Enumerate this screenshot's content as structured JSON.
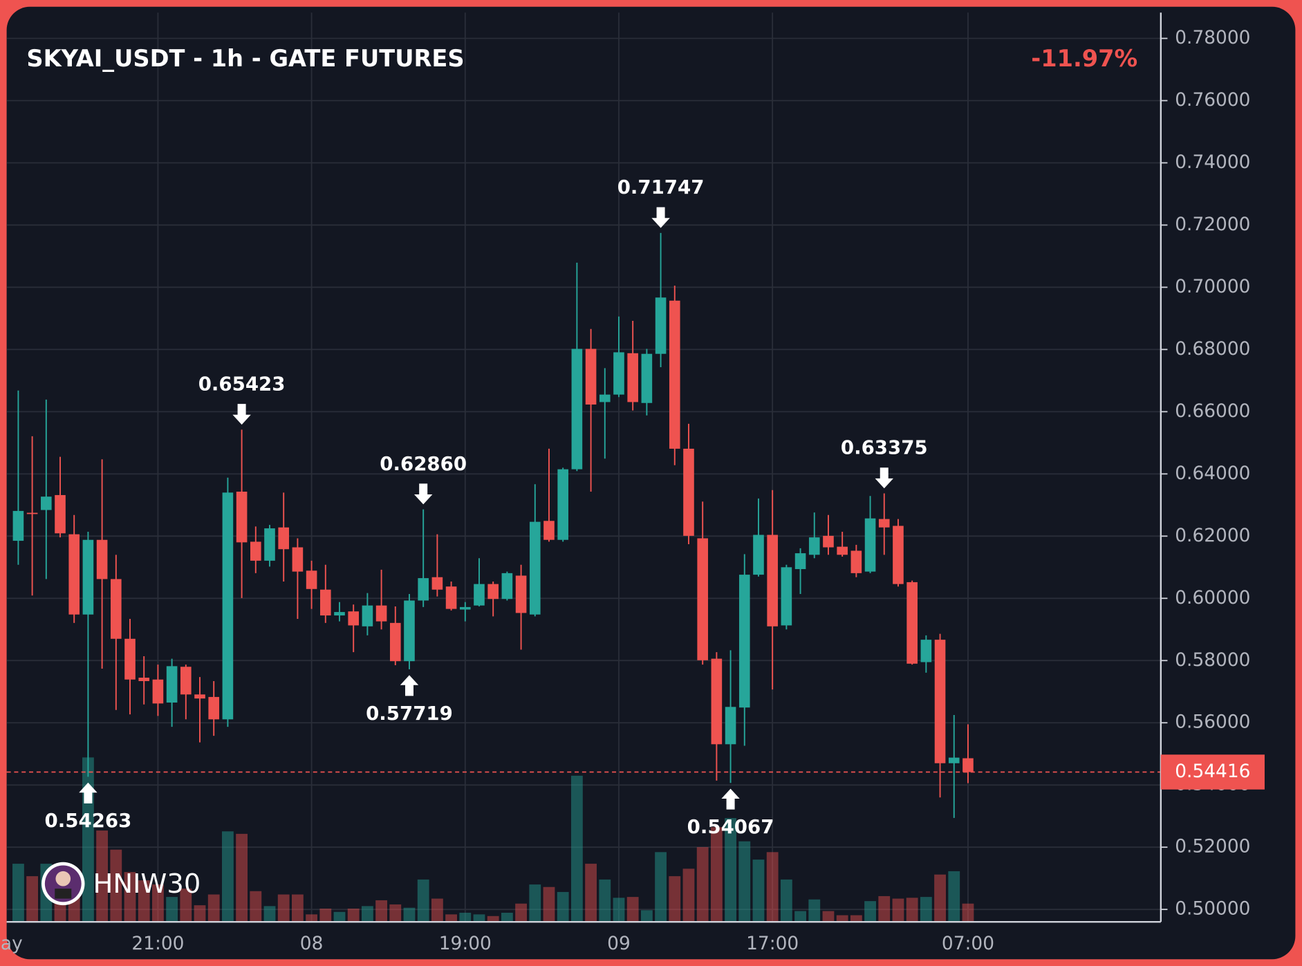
{
  "chart_data": {
    "type": "candlestick",
    "title": "SKYAI_USDT - 1h - GATE FUTURES",
    "change_label": "-11.97%",
    "watermark": "HNIW30",
    "up_color": "#26a69a",
    "down_color": "#ef5350",
    "grid": true,
    "ylim": [
      0.496,
      0.7883
    ],
    "yticks": [
      {
        "value": 0.5,
        "label": "0.50000"
      },
      {
        "value": 0.52,
        "label": "0.52000"
      },
      {
        "value": 0.54,
        "label": "0.54000"
      },
      {
        "value": 0.56,
        "label": "0.56000"
      },
      {
        "value": 0.58,
        "label": "0.58000"
      },
      {
        "value": 0.6,
        "label": "0.60000"
      },
      {
        "value": 0.62,
        "label": "0.62000"
      },
      {
        "value": 0.64,
        "label": "0.64000"
      },
      {
        "value": 0.66,
        "label": "0.66000"
      },
      {
        "value": 0.68,
        "label": "0.68000"
      },
      {
        "value": 0.7,
        "label": "0.70000"
      },
      {
        "value": 0.72,
        "label": "0.72000"
      },
      {
        "value": 0.74,
        "label": "0.74000"
      },
      {
        "value": 0.76,
        "label": "0.76000"
      },
      {
        "value": 0.78,
        "label": "0.78000"
      }
    ],
    "categories": [
      "ay",
      null,
      null,
      null,
      null,
      null,
      null,
      null,
      null,
      null,
      "21:00",
      null,
      null,
      null,
      null,
      null,
      null,
      null,
      null,
      null,
      null,
      "08",
      null,
      null,
      null,
      null,
      null,
      null,
      null,
      null,
      null,
      null,
      "19:00",
      null,
      null,
      null,
      null,
      null,
      null,
      null,
      null,
      null,
      null,
      "09",
      null,
      null,
      null,
      null,
      null,
      null,
      null,
      null,
      null,
      null,
      "17:00",
      null,
      null,
      null,
      null,
      null,
      null,
      null,
      null,
      null,
      null,
      null,
      null,
      null,
      "07:00"
    ],
    "open": [
      0.6185,
      0.6275,
      0.6284,
      0.6332,
      0.6206,
      0.5948,
      0.6188,
      0.6062,
      0.587,
      0.5745,
      0.5739,
      0.5665,
      0.578,
      0.5691,
      0.5683,
      0.5611,
      0.6343,
      0.6182,
      0.6121,
      0.6228,
      0.6164,
      0.6089,
      0.6028,
      0.5945,
      0.5958,
      0.591,
      0.5977,
      0.5921,
      0.5798,
      0.5993,
      0.6068,
      0.6038,
      0.5964,
      0.5977,
      0.6046,
      0.5998,
      0.6073,
      0.5948,
      0.6249,
      0.6188,
      0.6415,
      0.6802,
      0.6631,
      0.6655,
      0.6788,
      0.6628,
      0.6786,
      0.6957,
      0.6481,
      0.6193,
      0.5806,
      0.5531,
      0.5649,
      0.6076,
      0.6204,
      0.5913,
      0.6094,
      0.614,
      0.6201,
      0.6166,
      0.6153,
      0.6086,
      0.6255,
      0.6233,
      0.6052,
      0.5795,
      0.5867,
      0.547,
      0.5486
    ],
    "high": [
      0.6668,
      0.6521,
      0.6639,
      0.6455,
      0.6268,
      0.6214,
      0.6447,
      0.614,
      0.5934,
      0.5814,
      0.5787,
      0.5806,
      0.5787,
      0.5747,
      0.5734,
      0.6388,
      0.65423,
      0.6231,
      0.6236,
      0.634,
      0.6193,
      0.6121,
      0.6108,
      0.5988,
      0.598,
      0.6017,
      0.6092,
      0.5974,
      0.6014,
      0.6286,
      0.6206,
      0.6054,
      0.5988,
      0.6129,
      0.6054,
      0.6086,
      0.6108,
      0.6367,
      0.6481,
      0.642,
      0.7079,
      0.6866,
      0.674,
      0.6906,
      0.6892,
      0.6802,
      0.71747,
      0.7005,
      0.6561,
      0.6311,
      0.5827,
      0.5833,
      0.6142,
      0.6321,
      0.6348,
      0.6108,
      0.6161,
      0.6276,
      0.6268,
      0.6214,
      0.6172,
      0.6329,
      0.63375,
      0.6255,
      0.6057,
      0.5881,
      0.5886,
      0.5625,
      0.5595
    ],
    "low": [
      0.6108,
      0.6009,
      0.6062,
      0.6196,
      0.5921,
      0.54263,
      0.5774,
      0.5641,
      0.5627,
      0.5659,
      0.5622,
      0.5587,
      0.5611,
      0.5537,
      0.5558,
      0.5587,
      0.6001,
      0.6081,
      0.6102,
      0.6054,
      0.5934,
      0.5966,
      0.5921,
      0.5926,
      0.5827,
      0.5881,
      0.59,
      0.5785,
      0.57719,
      0.5972,
      0.6006,
      0.5961,
      0.5926,
      0.5974,
      0.5942,
      0.5993,
      0.5835,
      0.5942,
      0.6182,
      0.6182,
      0.6409,
      0.6343,
      0.6449,
      0.6647,
      0.6604,
      0.6588,
      0.6743,
      0.6428,
      0.6174,
      0.5787,
      0.5414,
      0.54067,
      0.5526,
      0.607,
      0.5707,
      0.59,
      0.6014,
      0.6129,
      0.614,
      0.6134,
      0.6068,
      0.6081,
      0.614,
      0.6038,
      0.5787,
      0.5761,
      0.536,
      0.5294,
      0.5406
    ],
    "close": [
      0.6281,
      0.6272,
      0.6327,
      0.6209,
      0.5948,
      0.6188,
      0.6062,
      0.587,
      0.5739,
      0.5734,
      0.5662,
      0.5782,
      0.5691,
      0.5678,
      0.5611,
      0.634,
      0.618,
      0.6121,
      0.6225,
      0.6158,
      0.6086,
      0.603,
      0.5945,
      0.5956,
      0.5913,
      0.5977,
      0.5926,
      0.5798,
      0.5993,
      0.6065,
      0.6028,
      0.5966,
      0.5972,
      0.6046,
      0.5998,
      0.6081,
      0.5953,
      0.6246,
      0.6188,
      0.6415,
      0.6802,
      0.6623,
      0.6655,
      0.6791,
      0.6631,
      0.6786,
      0.6967,
      0.6481,
      0.6201,
      0.5801,
      0.5531,
      0.5651,
      0.6076,
      0.6204,
      0.591,
      0.61,
      0.6145,
      0.6196,
      0.6164,
      0.614,
      0.6081,
      0.6257,
      0.6228,
      0.6046,
      0.579,
      0.5867,
      0.547,
      0.5488,
      0.54416
    ],
    "volume": [
      70,
      55,
      70,
      60,
      50,
      198,
      110,
      87,
      60,
      50,
      45,
      30,
      40,
      20,
      33,
      109,
      106,
      37,
      19,
      33,
      33,
      9,
      16,
      12,
      16,
      19,
      26,
      21,
      17,
      51,
      28,
      9,
      11,
      9,
      7,
      11,
      22,
      45,
      42,
      36,
      176,
      70,
      51,
      29,
      30,
      14,
      84,
      55,
      64,
      90,
      114,
      125,
      97,
      75,
      84,
      51,
      13,
      27,
      13,
      8,
      8,
      25,
      31,
      28,
      29,
      30,
      57,
      61,
      22
    ],
    "high_labels": [
      null,
      null,
      null,
      null,
      null,
      null,
      null,
      null,
      null,
      null,
      null,
      null,
      null,
      null,
      null,
      null,
      "0.65423",
      null,
      null,
      null,
      null,
      null,
      null,
      null,
      null,
      null,
      null,
      null,
      null,
      "0.62860",
      null,
      null,
      null,
      null,
      null,
      null,
      null,
      null,
      null,
      null,
      null,
      null,
      null,
      null,
      null,
      null,
      "0.71747",
      null,
      null,
      null,
      null,
      null,
      null,
      null,
      null,
      null,
      null,
      null,
      null,
      null,
      null,
      null,
      "0.63375",
      null,
      null,
      null,
      null,
      null,
      null
    ],
    "low_labels": [
      null,
      null,
      null,
      null,
      null,
      "0.54263",
      null,
      null,
      null,
      null,
      null,
      null,
      null,
      null,
      null,
      null,
      null,
      null,
      null,
      null,
      null,
      null,
      null,
      null,
      null,
      null,
      null,
      null,
      "0.57719",
      null,
      null,
      null,
      null,
      null,
      null,
      null,
      null,
      null,
      null,
      null,
      null,
      null,
      null,
      null,
      null,
      null,
      null,
      null,
      null,
      null,
      null,
      "0.54067",
      null,
      null,
      null,
      null,
      null,
      null,
      null,
      null,
      null,
      null,
      null,
      null,
      null,
      null,
      null,
      null,
      null
    ]
  }
}
